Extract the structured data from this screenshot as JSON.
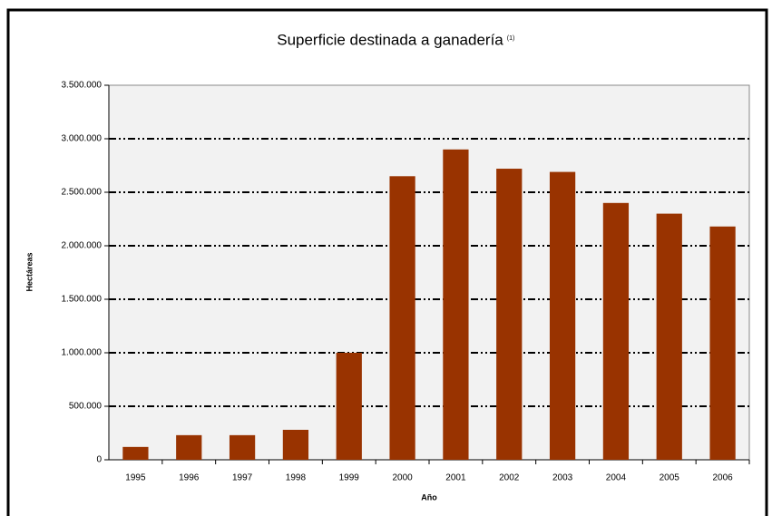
{
  "chart_data": {
    "type": "bar",
    "title": "Superficie destinada a ganadería",
    "title_note": "(1)",
    "y_label": "Hectáreas",
    "x_label": "Año",
    "categories": [
      "1995",
      "1996",
      "1997",
      "1998",
      "1999",
      "2000",
      "2001",
      "2002",
      "2003",
      "2004",
      "2005",
      "2006"
    ],
    "values": [
      120000,
      230000,
      230000,
      280000,
      1000000,
      2650000,
      2900000,
      2720000,
      2690000,
      2400000,
      2300000,
      2180000
    ],
    "color": "#993300",
    "ylim": [
      0,
      3500000
    ],
    "yticks": [
      0,
      {
        "value": 500000,
        "label": "500.000"
      },
      {
        "value": 1000000,
        "label": "1.000.000"
      },
      {
        "value": 1500000,
        "label": "1.500.000"
      },
      {
        "value": 2000000,
        "label": "2.000.000"
      },
      {
        "value": 2500000,
        "label": "2.500.000"
      },
      {
        "value": 3000000,
        "label": "3.000.000"
      },
      {
        "value": 3500000,
        "label": "3.500.000"
      }
    ],
    "grid": true
  }
}
